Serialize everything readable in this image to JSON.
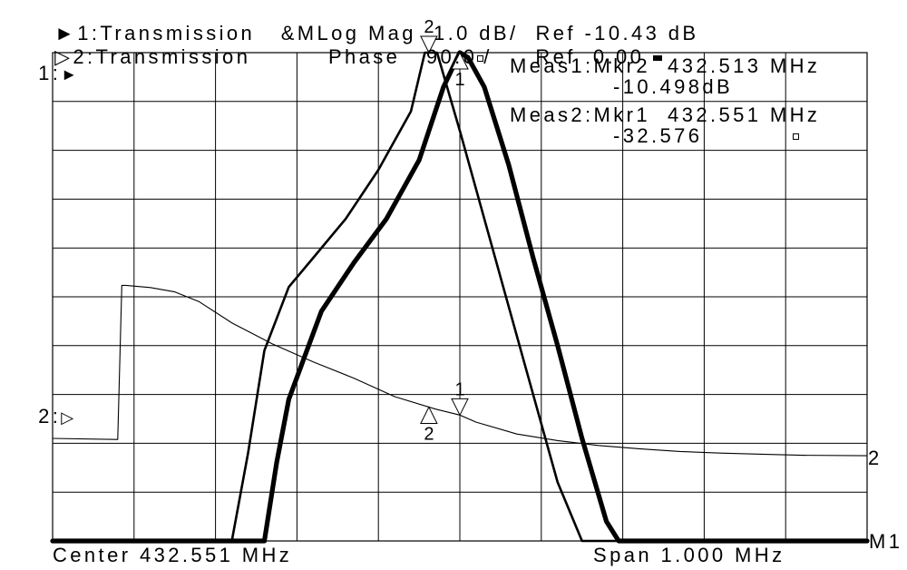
{
  "header": {
    "ch1_symbol": "►",
    "ch1_text": "1:Transmission   &MLog Mag  1.0 dB/  Ref -10.43 dB",
    "ch2_symbol": "▷",
    "ch2_text": "2:Transmission         Phase   90.0",
    "ch2_per": "/     Ref  0.00"
  },
  "ref_markers": {
    "ch1_label": "1:",
    "ch2_label": "2:"
  },
  "readouts": {
    "meas1_line1": "Meas1:Mkr2  432.513 MHz",
    "meas1_line2": "-10.498dB",
    "meas2_line1": "Meas2:Mkr1  432.551 MHz",
    "meas2_line2": "-32.576"
  },
  "footer": {
    "center": "Center 432.551 MHz",
    "span": "Span 1.000 MHz",
    "right_tag": "M1"
  },
  "trace_end_label": "2",
  "chart_data": {
    "type": "line",
    "x_center_mhz": 432.551,
    "x_span_mhz": 1.0,
    "xlim_mhz": [
      432.051,
      433.051
    ],
    "grid": "10x10",
    "ch1": {
      "format": "Log Mag",
      "scale_db_per_div": 1.0,
      "ref_db": -10.43,
      "ref_division_from_top": 0
    },
    "ch2": {
      "format": "Phase",
      "scale_deg_per_div": 90.0,
      "ref_deg": 0.0,
      "ref_division_from_top": 7
    },
    "series": [
      {
        "channel": 1,
        "style": "thin",
        "x_mhz": [
          432.051,
          432.271,
          432.291,
          432.311,
          432.341,
          432.371,
          432.411,
          432.451,
          432.491,
          432.508,
          432.523,
          432.551,
          432.591,
          432.631,
          432.671,
          432.701,
          432.751,
          433.051
        ],
        "y_db": [
          -20.43,
          -20.43,
          -18.63,
          -16.53,
          -15.23,
          -14.63,
          -13.83,
          -12.83,
          -11.63,
          -10.43,
          -10.43,
          -12.03,
          -14.43,
          -16.83,
          -19.23,
          -20.43,
          -20.43,
          -20.43
        ]
      },
      {
        "channel": 1,
        "style": "thick",
        "x_mhz": [
          432.051,
          432.311,
          432.326,
          432.341,
          432.381,
          432.421,
          432.461,
          432.501,
          432.531,
          432.551,
          432.561,
          432.581,
          432.611,
          432.641,
          432.671,
          432.701,
          432.731,
          432.746,
          433.051
        ],
        "y_db": [
          -20.43,
          -20.43,
          -18.83,
          -17.53,
          -15.73,
          -14.73,
          -13.83,
          -12.63,
          -11.13,
          -10.43,
          -10.53,
          -11.13,
          -12.73,
          -14.63,
          -16.43,
          -18.33,
          -20.03,
          -20.43,
          -20.43
        ]
      },
      {
        "channel": 2,
        "style": "hairline",
        "x_mhz": [
          432.051,
          432.131,
          432.131,
          432.136,
          432.141,
          432.171,
          432.201,
          432.231,
          432.271,
          432.321,
          432.371,
          432.421,
          432.471,
          432.521,
          432.551,
          432.571,
          432.621,
          432.671,
          432.721,
          432.771,
          432.821,
          432.871,
          432.921,
          432.971,
          433.051
        ],
        "y_deg": [
          -81,
          -83,
          -83,
          201,
          201,
          197,
          189,
          171,
          132,
          93,
          60,
          30,
          -4,
          -27,
          -38,
          -51,
          -73,
          -85,
          -94,
          -100,
          -105,
          -108,
          -110,
          -112,
          -113
        ]
      }
    ],
    "markers": [
      {
        "id": "1",
        "channel": 1,
        "x_mhz": 432.551,
        "value": "-32.576"
      },
      {
        "id": "2",
        "channel": 1,
        "x_mhz": 432.513,
        "value": "-10.498dB"
      },
      {
        "id": "1",
        "channel": 2,
        "x_mhz": 432.551
      },
      {
        "id": "2",
        "channel": 2,
        "x_mhz": 432.513
      }
    ]
  }
}
